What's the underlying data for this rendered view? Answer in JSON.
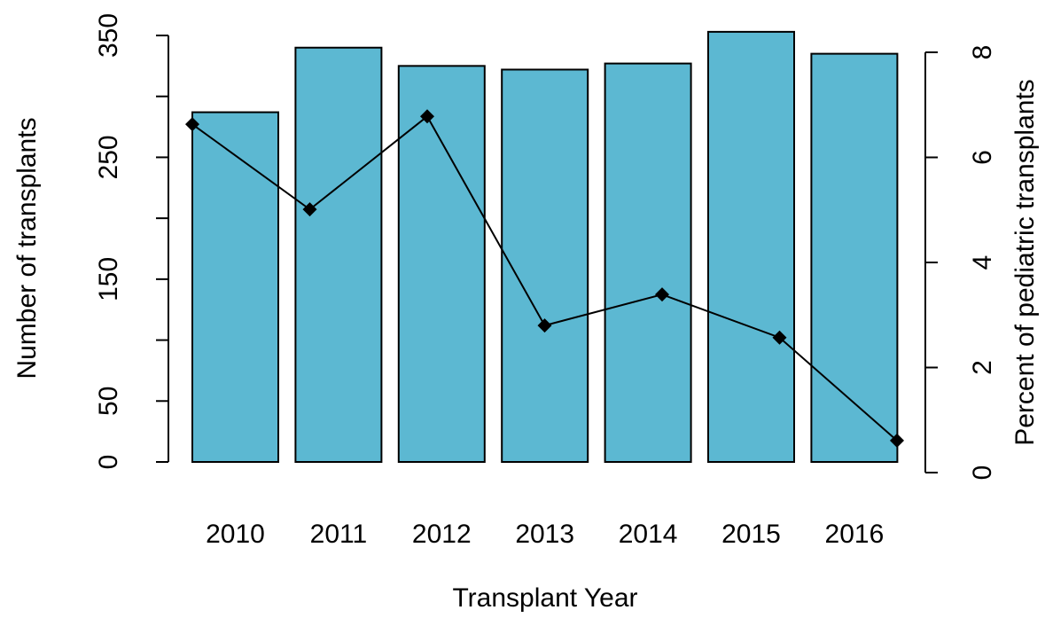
{
  "chart_data": {
    "type": "bar_line",
    "x_label": "Transplant Year",
    "y_label": "Number of transplants",
    "y2_label": "Percent of pediatric transplants",
    "categories": [
      "2010",
      "2011",
      "2012",
      "2013",
      "2014",
      "2015",
      "2016"
    ],
    "series": [
      {
        "type": "bar",
        "color": "#5cb8d2",
        "values": [
          287,
          340,
          325,
          322,
          327,
          353,
          335
        ]
      },
      {
        "type": "line",
        "axis": "y2",
        "color": "#000000",
        "values": [
          6.63,
          5.01,
          6.78,
          2.8,
          3.39,
          2.57,
          0.61
        ]
      }
    ],
    "ylim": [
      0,
      350
    ],
    "yticks": [
      0,
      50,
      150,
      250,
      350
    ],
    "y_minor_ticks": [
      100,
      200,
      300
    ],
    "y2lim": [
      0,
      8
    ],
    "y2ticks": [
      0,
      2,
      4,
      6,
      8
    ],
    "grid": false
  }
}
